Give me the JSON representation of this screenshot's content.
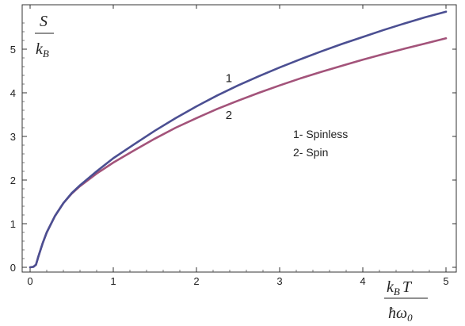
{
  "chart_data": {
    "type": "line",
    "title": "",
    "xlim": [
      0,
      5
    ],
    "ylim": [
      0,
      5.8
    ],
    "grid": false,
    "x_ticks": [
      "0",
      "1",
      "2",
      "3",
      "4",
      "5"
    ],
    "y_ticks": [
      "0",
      "1",
      "2",
      "3",
      "4",
      "5"
    ],
    "ylabel": {
      "numerator": "S",
      "denominator": "k",
      "denominator_sub": "B"
    },
    "xlabel": {
      "numerator": "k",
      "numerator_sub": "B",
      "numerator_rest": "T",
      "denominator": "ħω",
      "denominator_sub": "0"
    },
    "series": [
      {
        "name": "1",
        "color": "#4b4f92",
        "points": [
          [
            0,
            0
          ],
          [
            0.04,
            0.01
          ],
          [
            0.07,
            0.06
          ],
          [
            0.1,
            0.25
          ],
          [
            0.15,
            0.55
          ],
          [
            0.2,
            0.8
          ],
          [
            0.3,
            1.18
          ],
          [
            0.4,
            1.47
          ],
          [
            0.5,
            1.7
          ],
          [
            0.6,
            1.88
          ],
          [
            0.8,
            2.2
          ],
          [
            1.0,
            2.5
          ],
          [
            1.25,
            2.82
          ],
          [
            1.5,
            3.13
          ],
          [
            1.75,
            3.42
          ],
          [
            2.0,
            3.69
          ],
          [
            2.25,
            3.94
          ],
          [
            2.5,
            4.17
          ],
          [
            2.75,
            4.38
          ],
          [
            3.0,
            4.58
          ],
          [
            3.25,
            4.77
          ],
          [
            3.5,
            4.95
          ],
          [
            3.75,
            5.12
          ],
          [
            4.0,
            5.28
          ],
          [
            4.25,
            5.44
          ],
          [
            4.5,
            5.59
          ],
          [
            4.75,
            5.73
          ],
          [
            5.0,
            5.86
          ]
        ]
      },
      {
        "name": "2",
        "color": "#a3537a",
        "points": [
          [
            0,
            0
          ],
          [
            0.04,
            0.01
          ],
          [
            0.07,
            0.06
          ],
          [
            0.1,
            0.25
          ],
          [
            0.15,
            0.55
          ],
          [
            0.2,
            0.8
          ],
          [
            0.3,
            1.18
          ],
          [
            0.4,
            1.47
          ],
          [
            0.5,
            1.69
          ],
          [
            0.6,
            1.86
          ],
          [
            0.8,
            2.15
          ],
          [
            1.0,
            2.4
          ],
          [
            1.25,
            2.68
          ],
          [
            1.5,
            2.95
          ],
          [
            1.75,
            3.2
          ],
          [
            2.0,
            3.42
          ],
          [
            2.25,
            3.63
          ],
          [
            2.5,
            3.82
          ],
          [
            2.75,
            4.0
          ],
          [
            3.0,
            4.17
          ],
          [
            3.25,
            4.33
          ],
          [
            3.5,
            4.48
          ],
          [
            3.75,
            4.62
          ],
          [
            4.0,
            4.76
          ],
          [
            4.25,
            4.89
          ],
          [
            4.5,
            5.01
          ],
          [
            4.75,
            5.13
          ],
          [
            5.0,
            5.25
          ]
        ]
      }
    ],
    "curve_labels": [
      {
        "text": "1",
        "x": 2.35,
        "y": 4.25
      },
      {
        "text": "2",
        "x": 2.35,
        "y": 3.4
      }
    ],
    "legend": {
      "placement": "right-center",
      "lines": [
        "1- Spinless",
        "2- Spin"
      ]
    }
  }
}
